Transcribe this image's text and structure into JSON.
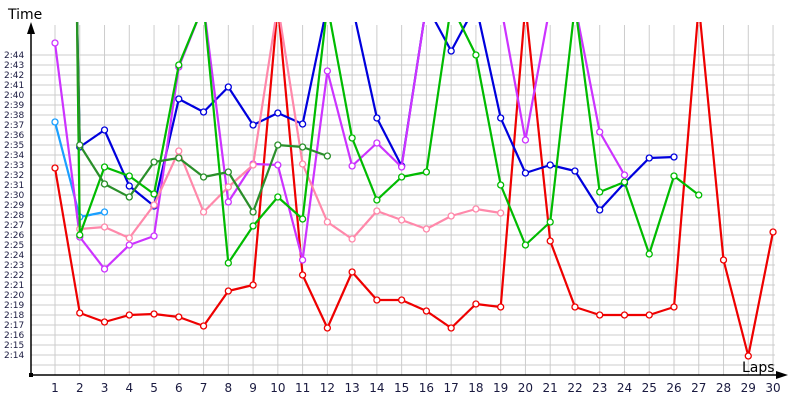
{
  "chart_data": {
    "type": "line",
    "title": "",
    "xlabel": "Laps",
    "ylabel": "Time",
    "x": [
      1,
      2,
      3,
      4,
      5,
      6,
      7,
      8,
      9,
      10,
      11,
      12,
      13,
      14,
      15,
      16,
      17,
      18,
      19,
      20,
      21,
      22,
      23,
      24,
      25,
      26,
      27,
      28,
      29,
      30
    ],
    "xticks": [
      "1",
      "2",
      "3",
      "4",
      "5",
      "6",
      "7",
      "8",
      "9",
      "10",
      "11",
      "12",
      "13",
      "14",
      "15",
      "16",
      "17",
      "18",
      "19",
      "20",
      "21",
      "22",
      "23",
      "24",
      "25",
      "26",
      "27",
      "28",
      "29",
      "30"
    ],
    "yticks": [
      "2:44",
      "2:43",
      "2:42",
      "2:41",
      "2:40",
      "2:39",
      "2:38",
      "2:37",
      "2:36",
      "2:35",
      "2:34",
      "2:33",
      "2:32",
      "2:31",
      "2:30",
      "2:29",
      "2:28",
      "2:27",
      "2:26",
      "2:25",
      "2:24",
      "2:23",
      "2:22",
      "2:21",
      "2:20",
      "2:19",
      "2:18",
      "2:17",
      "2:16",
      "2:15",
      "2:14"
    ],
    "ylim_seconds": [
      132,
      168
    ],
    "grid": true,
    "legend": "none",
    "value_unit": "seconds (lap time, m:ss shown on axis)",
    "note": "null = off-chart (above top) or no data; lines run off top of plot where values exceed range",
    "series": [
      {
        "name": "red",
        "color": "#ee0000",
        "values": [
          152.7,
          138.2,
          137.3,
          138.0,
          138.1,
          137.8,
          136.9,
          140.4,
          141.0,
          null,
          142.0,
          136.7,
          142.3,
          139.5,
          139.5,
          138.4,
          136.7,
          139.1,
          138.8,
          null,
          145.4,
          138.8,
          138.0,
          138.0,
          138.0,
          138.8,
          null,
          143.5,
          133.9,
          146.3
        ]
      },
      {
        "name": "blue",
        "color": "#0000dd",
        "values": [
          null,
          154.8,
          156.5,
          150.9,
          148.9,
          159.6,
          158.3,
          160.8,
          157.0,
          158.2,
          157.1,
          null,
          null,
          157.7,
          152.9,
          null,
          164.4,
          null,
          157.7,
          152.2,
          153.0,
          152.4,
          148.5,
          151.2,
          153.7,
          153.8,
          null,
          null,
          null,
          null
        ]
      },
      {
        "name": "light-blue",
        "color": "#1a9fff",
        "values": [
          157.3,
          147.8,
          148.3,
          null,
          null,
          null,
          null,
          null,
          null,
          null,
          null,
          null,
          null,
          null,
          null,
          null,
          null,
          null,
          null,
          null,
          null,
          null,
          null,
          null,
          null,
          null,
          null,
          null,
          null,
          null
        ]
      },
      {
        "name": "purple",
        "color": "#cc33ff",
        "values": [
          165.2,
          145.8,
          142.6,
          145.0,
          145.9,
          162.8,
          null,
          149.3,
          153.1,
          153.0,
          143.5,
          162.4,
          152.9,
          155.2,
          152.8,
          null,
          null,
          null,
          null,
          155.5,
          null,
          null,
          156.3,
          152.0,
          null,
          null,
          null,
          null,
          null,
          null
        ]
      },
      {
        "name": "pink",
        "color": "#ff88aa",
        "values": [
          null,
          146.6,
          146.8,
          145.7,
          149.0,
          154.4,
          148.3,
          150.8,
          153.0,
          null,
          153.1,
          147.3,
          145.6,
          148.4,
          147.5,
          146.6,
          147.9,
          148.6,
          148.2,
          null,
          null,
          null,
          null,
          null,
          null,
          null,
          null,
          null,
          null,
          null
        ]
      },
      {
        "name": "green",
        "color": "#00bb00",
        "values": [
          null,
          146.0,
          152.8,
          151.9,
          150.1,
          163.0,
          null,
          143.2,
          146.9,
          149.8,
          147.6,
          null,
          155.7,
          149.5,
          151.8,
          152.3,
          null,
          164.0,
          151.0,
          145.0,
          147.3,
          null,
          150.3,
          151.3,
          144.1,
          151.9,
          150.0,
          null,
          null,
          null
        ]
      },
      {
        "name": "dark-green",
        "color": "#2a8f2a",
        "values": [
          null,
          155.0,
          151.1,
          149.8,
          153.3,
          153.7,
          151.8,
          152.3,
          148.3,
          155.0,
          154.8,
          153.9,
          null,
          null,
          null,
          null,
          null,
          null,
          null,
          null,
          null,
          null,
          null,
          null,
          null,
          null,
          null,
          null,
          null,
          null
        ]
      }
    ],
    "offchart_segments": "Several series spike above the plotted range (pit stops / slow laps) producing vertical lines to the top edge."
  },
  "axes": {
    "y_title": "Time",
    "x_title": "Laps"
  }
}
